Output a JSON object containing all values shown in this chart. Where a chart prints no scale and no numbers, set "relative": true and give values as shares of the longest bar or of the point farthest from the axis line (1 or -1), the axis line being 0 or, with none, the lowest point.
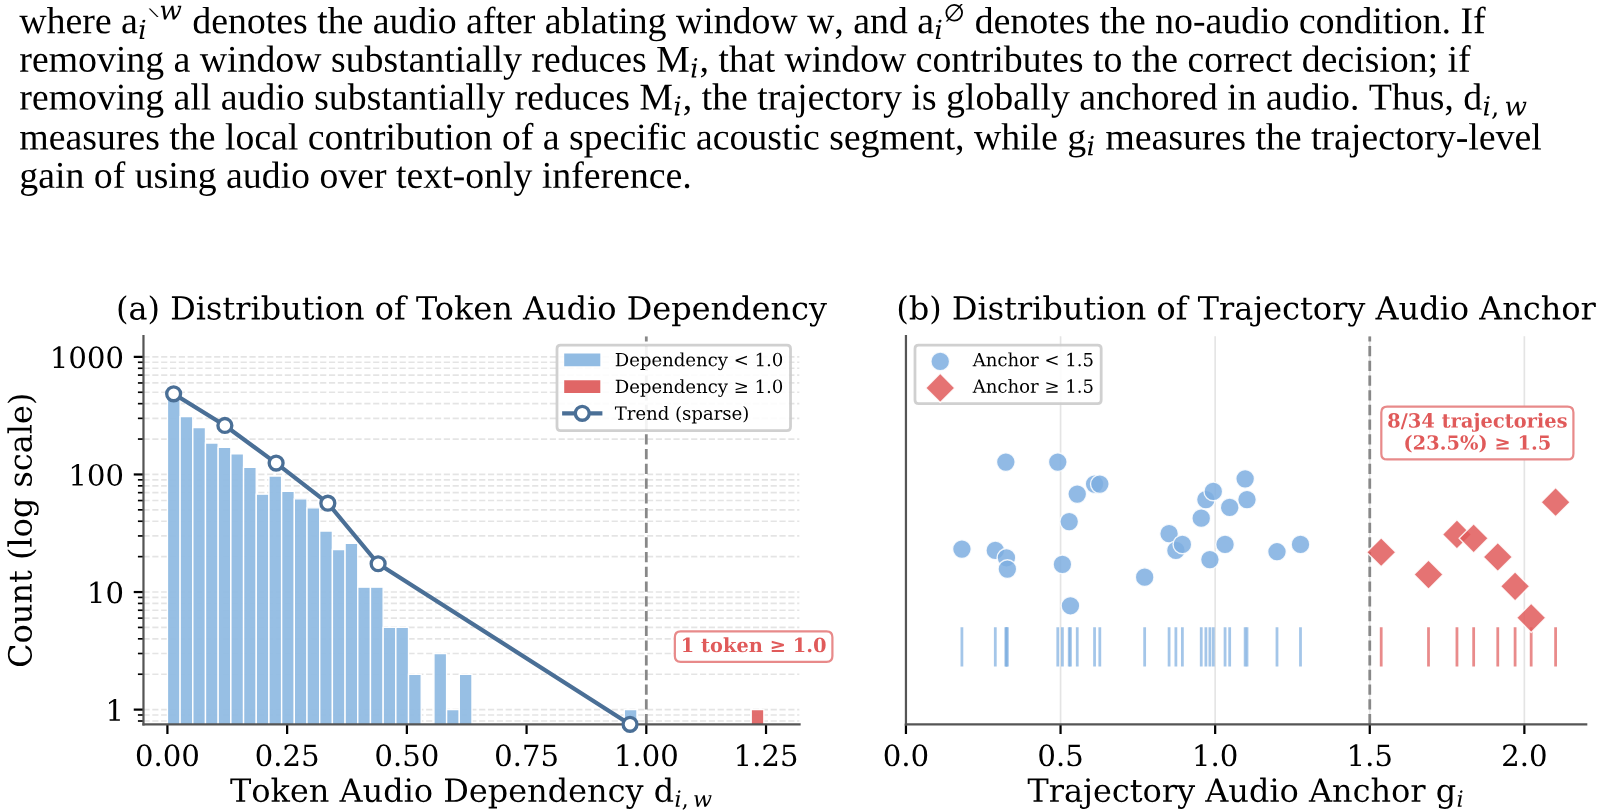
{
  "chart_data": [
    {
      "type": "histogram",
      "title": "(a) Distribution of Token Audio Dependency",
      "xlabel": "Token Audio Dependency d$_{i,w}$",
      "ylabel": "Count (log scale)",
      "annotations": [
        "where a$_{i}$$^{∖w}$ denotes the audio after ablating window w, and a$_{i}$$^{∅}$ denotes the no-audio condition. If\nremoving a window substantially reduces M$_{i}$, that window contributes to the correct decision; if\nremoving all audio substantially reduces M$_{i}$, the trajectory is globally anchored in audio. Thus, d$_{i,w}$\nmeasures the local contribution of a specific acoustic segment, while g$_{i}$ measures the trajectory-level\ngain of using audio over text-only inference.",
        "1 token ≥ 1.0"
      ],
      "bins": [
        0,
        0.0265,
        0.053,
        0.0795,
        0.106,
        0.1325,
        0.159,
        0.1855,
        0.212,
        0.2385,
        0.265,
        0.2915,
        0.318,
        0.3445,
        0.371,
        0.3975,
        0.424,
        0.4505,
        0.477,
        0.5035,
        0.53,
        0.5565,
        0.583,
        0.6095,
        0.636,
        0.6625,
        0.689,
        0.7155,
        0.742,
        0.7685,
        0.795,
        0.8215,
        0.848,
        0.8745,
        0.901,
        0.9275,
        0.954,
        0.9805,
        1.007,
        1.0335,
        1.06,
        1.0865,
        1.113,
        1.1395,
        1.166,
        1.1925,
        1.219,
        1.2455
      ],
      "series": [
        {
          "name": "Dependency < 1.0",
          "color": "#92bce3",
          "values": [
            460,
            310,
            250,
            185,
            170,
            150,
            115,
            68,
            97,
            72,
            62,
            52,
            33,
            23,
            26,
            11,
            11,
            5,
            5,
            2,
            null,
            3,
            1,
            2,
            null,
            null,
            null,
            null,
            null,
            null,
            null,
            null,
            null,
            null,
            null,
            null,
            1,
            null,
            null,
            null,
            null,
            null,
            null,
            null,
            null,
            null,
            null
          ]
        },
        {
          "name": "Dependency ≥ 1.0",
          "color": "#e06666",
          "values": [
            null,
            null,
            null,
            null,
            null,
            null,
            null,
            null,
            null,
            null,
            null,
            null,
            null,
            null,
            null,
            null,
            null,
            null,
            null,
            null,
            null,
            null,
            null,
            null,
            null,
            null,
            null,
            null,
            null,
            null,
            null,
            null,
            null,
            null,
            null,
            null,
            null,
            null,
            null,
            null,
            null,
            null,
            null,
            null,
            null,
            null,
            1
          ]
        },
        {
          "name": "Trend (sparse)",
          "type": "line",
          "color": "#4a6f96",
          "marker": "circle",
          "x": [
            0.013,
            0.12,
            0.227,
            0.335,
            0.44,
            0.966
          ],
          "values": [
            485,
            261,
            125,
            57,
            17.4,
            0.75
          ]
        }
      ],
      "log": "y",
      "xlim": [
        -0.05,
        1.32
      ],
      "ylim": [
        0.75,
        1500
      ],
      "xticks": [
        {
          "value": 0,
          "label": "0.00"
        },
        0.25,
        {
          "value": 0.5,
          "label": "0.50"
        },
        0.75,
        {
          "value": 1,
          "label": "1.00"
        },
        1.25
      ],
      "yticks": [
        1,
        10,
        100,
        1000
      ],
      "ref_lines": [
        {
          "axis": "x",
          "value": 1.0,
          "color": "#888888",
          "line_style": "dashed"
        }
      ],
      "grid": "y",
      "legend": "top right"
    },
    {
      "type": "scatter",
      "title": "(b) Distribution of Trajectory Audio Anchor",
      "xlabel": "Trajectory Audio Anchor g$_{i}$",
      "relative": true,
      "annotations": [
        "8/34 trajectories\n(23.5%) ≥ 1.5"
      ],
      "series": [
        {
          "name": "Anchor < 1.5",
          "color": "#7eaee0",
          "marker": "circle",
          "x": [
            0.323,
            0.491,
            0.61,
            0.627,
            0.554,
            0.528,
            0.181,
            0.289,
            0.325,
            0.328,
            0.506,
            0.532,
            0.772,
            0.851,
            0.873,
            0.894,
            0.955,
            0.97,
            0.994,
            1.097,
            1.103,
            1.047,
            1.032,
            0.983,
            1.2,
            1.276
          ],
          "values": [
            1.0,
            1.0,
            0.916,
            0.916,
            0.878,
            0.773,
            0.668,
            0.663,
            0.635,
            0.592,
            0.61,
            0.452,
            0.561,
            0.727,
            0.663,
            0.686,
            0.786,
            0.857,
            0.888,
            0.936,
            0.857,
            0.827,
            0.686,
            0.628,
            0.658,
            0.686
          ]
        },
        {
          "name": "Anchor ≥ 1.5",
          "color": "#e05a5a",
          "marker": "diamond",
          "x": [
            1.537,
            1.69,
            1.782,
            1.836,
            1.914,
            1.97,
            2.022,
            2.101
          ],
          "values": [
            0.656,
            0.571,
            0.724,
            0.709,
            0.638,
            0.526,
            0.406,
            0.847
          ]
        }
      ],
      "xlim": [
        0,
        2.2
      ],
      "xticks": [
        {
          "value": 0,
          "label": "0.0"
        },
        0.5,
        {
          "value": 1,
          "label": "1.0"
        },
        1.5,
        {
          "value": 2,
          "label": "2.0"
        }
      ],
      "ref_lines": [
        {
          "axis": "x",
          "value": 1.5,
          "color": "#888888",
          "line_style": "dashed"
        }
      ],
      "grid": "x",
      "legend": "top left",
      "tick_labels": "x"
    }
  ]
}
